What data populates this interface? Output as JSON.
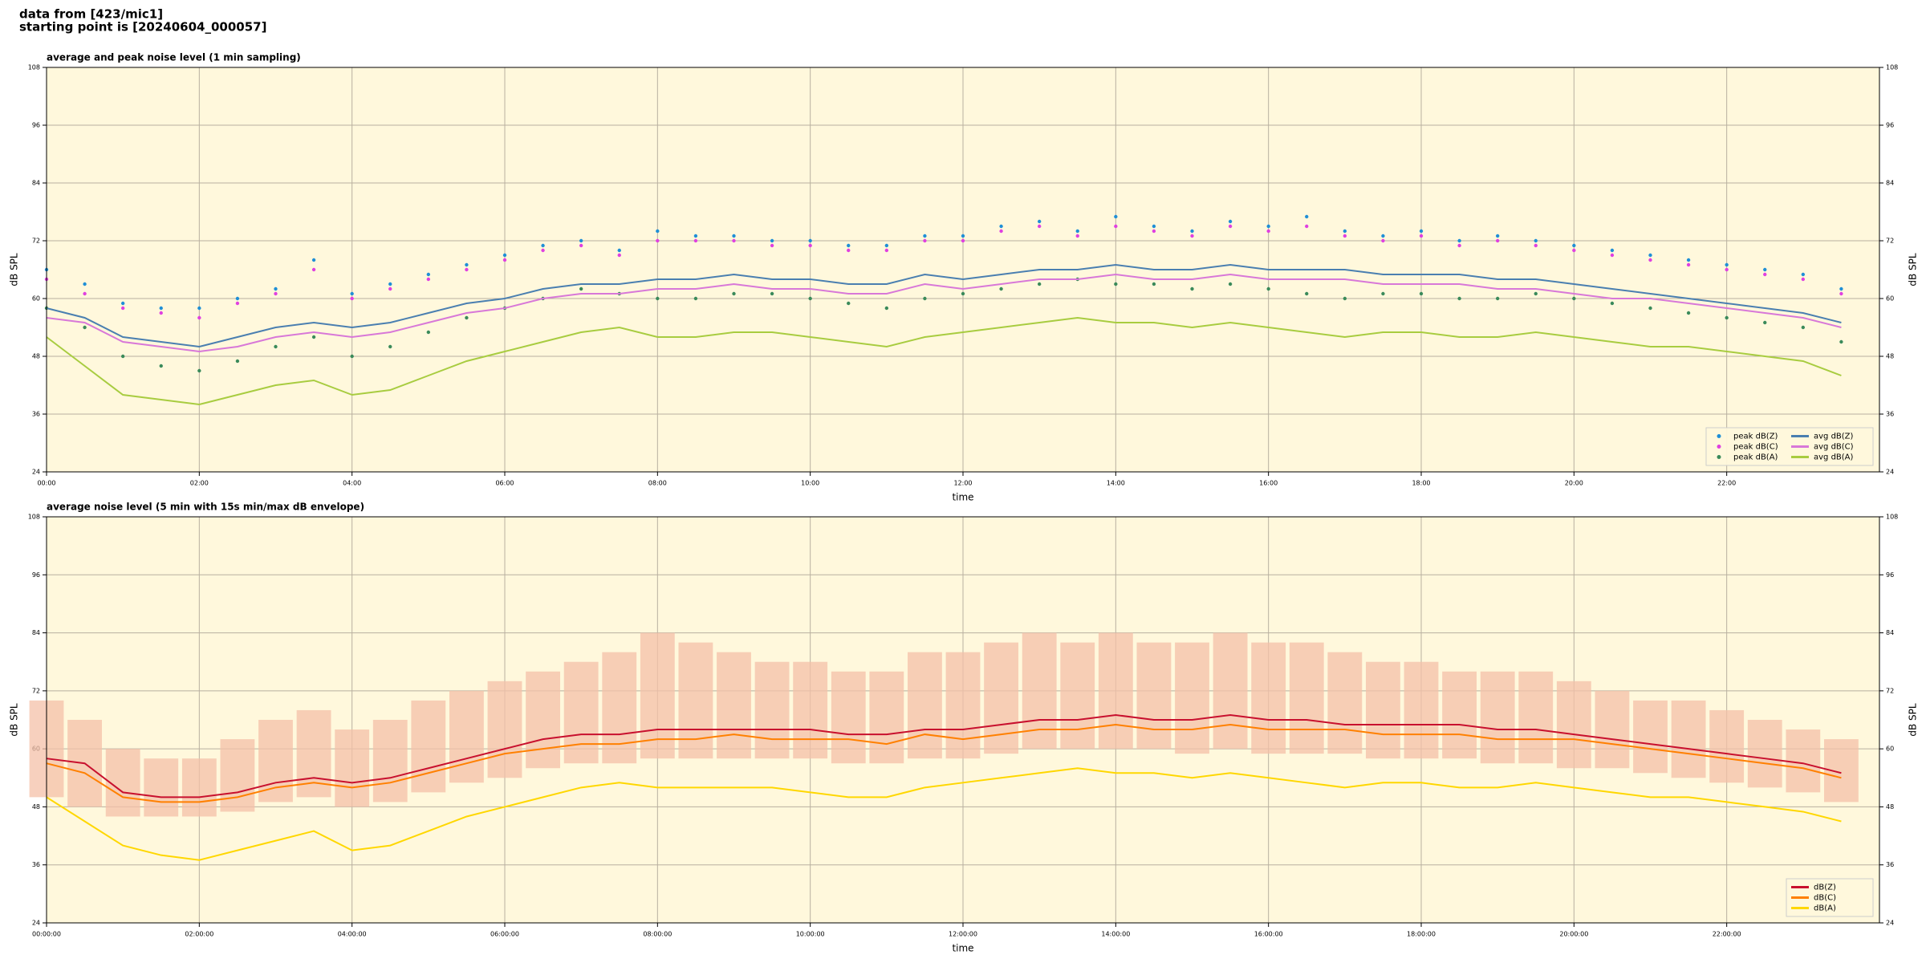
{
  "header": {
    "lines": [
      "data from [423/mic1]",
      "starting point is [20240604_000057]"
    ]
  },
  "chart_data": [
    {
      "type": "line",
      "title": "average and peak noise level (1 min sampling)",
      "xlabel": "time",
      "ylabel": "dB SPL",
      "background": "#fff8dc",
      "grid": true,
      "legend": "lower right",
      "legend_columns": 2,
      "right_axis": true,
      "x": [
        0,
        0.5,
        1,
        1.5,
        2,
        2.5,
        3,
        3.5,
        4,
        4.5,
        5,
        5.5,
        6,
        6.5,
        7,
        7.5,
        8,
        8.5,
        9,
        9.5,
        10,
        10.5,
        11,
        11.5,
        12,
        12.5,
        13,
        13.5,
        14,
        14.5,
        15,
        15.5,
        16,
        16.5,
        17,
        17.5,
        18,
        18.5,
        19,
        19.5,
        20,
        20.5,
        21,
        21.5,
        22,
        22.5,
        23,
        23.5
      ],
      "xlim": [
        0,
        24
      ],
      "xticks": [
        {
          "value": 0,
          "label": "00:00"
        },
        {
          "value": 2,
          "label": "02:00"
        },
        {
          "value": 4,
          "label": "04:00"
        },
        {
          "value": 6,
          "label": "06:00"
        },
        {
          "value": 8,
          "label": "08:00"
        },
        {
          "value": 10,
          "label": "10:00"
        },
        {
          "value": 12,
          "label": "12:00"
        },
        {
          "value": 14,
          "label": "14:00"
        },
        {
          "value": 16,
          "label": "16:00"
        },
        {
          "value": 18,
          "label": "18:00"
        },
        {
          "value": 20,
          "label": "20:00"
        },
        {
          "value": 22,
          "label": "22:00"
        }
      ],
      "ylim": [
        24,
        108
      ],
      "yticks": [
        24,
        36,
        48,
        60,
        72,
        84,
        96,
        108
      ],
      "series": [
        {
          "name": "peak dB(Z)",
          "style": "dots",
          "color": "#1f8fd6",
          "values": [
            66,
            63,
            59,
            58,
            58,
            60,
            62,
            68,
            61,
            63,
            65,
            67,
            69,
            71,
            72,
            70,
            74,
            73,
            73,
            72,
            72,
            71,
            71,
            73,
            73,
            75,
            76,
            74,
            77,
            75,
            74,
            76,
            75,
            77,
            74,
            73,
            74,
            72,
            73,
            72,
            71,
            70,
            69,
            68,
            67,
            66,
            65,
            62
          ]
        },
        {
          "name": "peak dB(C)",
          "style": "dots",
          "color": "#e040e0",
          "values": [
            64,
            61,
            58,
            57,
            56,
            59,
            61,
            66,
            60,
            62,
            64,
            66,
            68,
            70,
            71,
            69,
            72,
            72,
            72,
            71,
            71,
            70,
            70,
            72,
            72,
            74,
            75,
            73,
            75,
            74,
            73,
            75,
            74,
            75,
            73,
            72,
            73,
            71,
            72,
            71,
            70,
            69,
            68,
            67,
            66,
            65,
            64,
            61
          ]
        },
        {
          "name": "peak dB(A)",
          "style": "dots",
          "color": "#3a8a5a",
          "values": [
            58,
            54,
            48,
            46,
            45,
            47,
            50,
            52,
            48,
            50,
            53,
            56,
            58,
            60,
            62,
            61,
            60,
            60,
            61,
            61,
            60,
            59,
            58,
            60,
            61,
            62,
            63,
            64,
            63,
            63,
            62,
            63,
            62,
            61,
            60,
            61,
            61,
            60,
            60,
            61,
            60,
            59,
            58,
            57,
            56,
            55,
            54,
            51
          ]
        },
        {
          "name": "avg dB(Z)",
          "style": "line",
          "color": "#4a7fb0",
          "values": [
            58,
            56,
            52,
            51,
            50,
            52,
            54,
            55,
            54,
            55,
            57,
            59,
            60,
            62,
            63,
            63,
            64,
            64,
            65,
            64,
            64,
            63,
            63,
            65,
            64,
            65,
            66,
            66,
            67,
            66,
            66,
            67,
            66,
            66,
            66,
            65,
            65,
            65,
            64,
            64,
            63,
            62,
            61,
            60,
            59,
            58,
            57,
            55
          ]
        },
        {
          "name": "avg dB(C)",
          "style": "line",
          "color": "#d878d8",
          "values": [
            56,
            55,
            51,
            50,
            49,
            50,
            52,
            53,
            52,
            53,
            55,
            57,
            58,
            60,
            61,
            61,
            62,
            62,
            63,
            62,
            62,
            61,
            61,
            63,
            62,
            63,
            64,
            64,
            65,
            64,
            64,
            65,
            64,
            64,
            64,
            63,
            63,
            63,
            62,
            62,
            61,
            60,
            60,
            59,
            58,
            57,
            56,
            54
          ]
        },
        {
          "name": "avg dB(A)",
          "style": "line",
          "color": "#a8cc40",
          "values": [
            52,
            46,
            40,
            39,
            38,
            40,
            42,
            43,
            40,
            41,
            44,
            47,
            49,
            51,
            53,
            54,
            52,
            52,
            53,
            53,
            52,
            51,
            50,
            52,
            53,
            54,
            55,
            56,
            55,
            55,
            54,
            55,
            54,
            53,
            52,
            53,
            53,
            52,
            52,
            53,
            52,
            51,
            50,
            50,
            49,
            48,
            47,
            44
          ]
        }
      ]
    },
    {
      "type": "line",
      "title": "average noise level (5 min with 15s min/max dB envelope)",
      "xlabel": "time",
      "ylabel": "dB SPL",
      "background": "#fff8dc",
      "grid": true,
      "legend": "lower right",
      "legend_columns": 1,
      "right_axis": true,
      "x": [
        0,
        0.5,
        1,
        1.5,
        2,
        2.5,
        3,
        3.5,
        4,
        4.5,
        5,
        5.5,
        6,
        6.5,
        7,
        7.5,
        8,
        8.5,
        9,
        9.5,
        10,
        10.5,
        11,
        11.5,
        12,
        12.5,
        13,
        13.5,
        14,
        14.5,
        15,
        15.5,
        16,
        16.5,
        17,
        17.5,
        18,
        18.5,
        19,
        19.5,
        20,
        20.5,
        21,
        21.5,
        22,
        22.5,
        23,
        23.5
      ],
      "xlim": [
        0,
        24
      ],
      "xticks": [
        {
          "value": 0,
          "label": "00:00:00"
        },
        {
          "value": 2,
          "label": "02:00:00"
        },
        {
          "value": 4,
          "label": "04:00:00"
        },
        {
          "value": 6,
          "label": "06:00:00"
        },
        {
          "value": 8,
          "label": "08:00:00"
        },
        {
          "value": 10,
          "label": "10:00:00"
        },
        {
          "value": 12,
          "label": "12:00:00"
        },
        {
          "value": 14,
          "label": "14:00:00"
        },
        {
          "value": 16,
          "label": "16:00:00"
        },
        {
          "value": 18,
          "label": "18:00:00"
        },
        {
          "value": 20,
          "label": "20:00:00"
        },
        {
          "value": 22,
          "label": "22:00:00"
        }
      ],
      "ylim": [
        24,
        108
      ],
      "yticks": [
        24,
        36,
        48,
        60,
        72,
        84,
        96,
        108
      ],
      "envelope": {
        "color": "#f4c0a8",
        "high": [
          70,
          66,
          60,
          58,
          58,
          62,
          66,
          68,
          64,
          66,
          70,
          72,
          74,
          76,
          78,
          80,
          84,
          82,
          80,
          78,
          78,
          76,
          76,
          80,
          80,
          82,
          84,
          82,
          84,
          82,
          82,
          84,
          82,
          82,
          80,
          78,
          78,
          76,
          76,
          76,
          74,
          72,
          70,
          70,
          68,
          66,
          64,
          62
        ],
        "low": [
          50,
          48,
          46,
          46,
          46,
          47,
          49,
          50,
          48,
          49,
          51,
          53,
          54,
          56,
          57,
          57,
          58,
          58,
          58,
          58,
          58,
          57,
          57,
          58,
          58,
          59,
          60,
          60,
          60,
          60,
          59,
          60,
          59,
          59,
          59,
          58,
          58,
          58,
          57,
          57,
          56,
          56,
          55,
          54,
          53,
          52,
          51,
          49
        ]
      },
      "series": [
        {
          "name": "dB(Z)",
          "style": "line",
          "color": "#c8102e",
          "values": [
            58,
            57,
            51,
            50,
            50,
            51,
            53,
            54,
            53,
            54,
            56,
            58,
            60,
            62,
            63,
            63,
            64,
            64,
            64,
            64,
            64,
            63,
            63,
            64,
            64,
            65,
            66,
            66,
            67,
            66,
            66,
            67,
            66,
            66,
            65,
            65,
            65,
            65,
            64,
            64,
            63,
            62,
            61,
            60,
            59,
            58,
            57,
            55
          ]
        },
        {
          "name": "dB(C)",
          "style": "line",
          "color": "#ff8000",
          "values": [
            57,
            55,
            50,
            49,
            49,
            50,
            52,
            53,
            52,
            53,
            55,
            57,
            59,
            60,
            61,
            61,
            62,
            62,
            63,
            62,
            62,
            62,
            61,
            63,
            62,
            63,
            64,
            64,
            65,
            64,
            64,
            65,
            64,
            64,
            64,
            63,
            63,
            63,
            62,
            62,
            62,
            61,
            60,
            59,
            58,
            57,
            56,
            54
          ]
        },
        {
          "name": "dB(A)",
          "style": "line",
          "color": "#ffd700",
          "values": [
            50,
            45,
            40,
            38,
            37,
            39,
            41,
            43,
            39,
            40,
            43,
            46,
            48,
            50,
            52,
            53,
            52,
            52,
            52,
            52,
            51,
            50,
            50,
            52,
            53,
            54,
            55,
            56,
            55,
            55,
            54,
            55,
            54,
            53,
            52,
            53,
            53,
            52,
            52,
            53,
            52,
            51,
            50,
            50,
            49,
            48,
            47,
            45
          ]
        }
      ]
    }
  ]
}
